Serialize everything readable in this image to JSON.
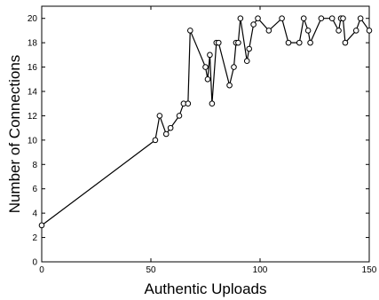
{
  "chart_data": {
    "type": "line",
    "xlabel": "Authentic Uploads",
    "ylabel": "Number of Connections",
    "xlim": [
      0,
      150
    ],
    "ylim": [
      0,
      21
    ],
    "xticks": [
      0,
      50,
      100,
      150
    ],
    "yticks": [
      0,
      2,
      4,
      6,
      8,
      10,
      12,
      14,
      16,
      18,
      20
    ],
    "x_tick_labels": [
      "0",
      "50",
      "100",
      "150"
    ],
    "y_tick_labels": [
      "0",
      "2",
      "4",
      "6",
      "8",
      "10",
      "12",
      "14",
      "16",
      "18",
      "20"
    ],
    "grid": false,
    "marker": "open-circle",
    "series": [
      {
        "x": [
          0,
          52,
          54,
          57,
          59,
          63,
          65,
          67,
          68,
          75,
          76,
          77,
          78,
          80,
          81,
          86,
          88,
          89,
          90,
          91,
          94,
          95,
          97,
          99,
          104,
          110,
          113,
          118,
          120,
          122,
          123,
          128,
          133,
          136,
          137,
          138,
          139,
          144,
          146,
          150
        ],
        "y": [
          3,
          10,
          12,
          10.5,
          11,
          12,
          13,
          13,
          19,
          16,
          15,
          17,
          13,
          18,
          18,
          14.5,
          16,
          18,
          18,
          20,
          16.5,
          17.5,
          19.5,
          20,
          19,
          20,
          18,
          18,
          20,
          19,
          18,
          20,
          20,
          19,
          20,
          20,
          18,
          19,
          20,
          19
        ]
      }
    ]
  }
}
